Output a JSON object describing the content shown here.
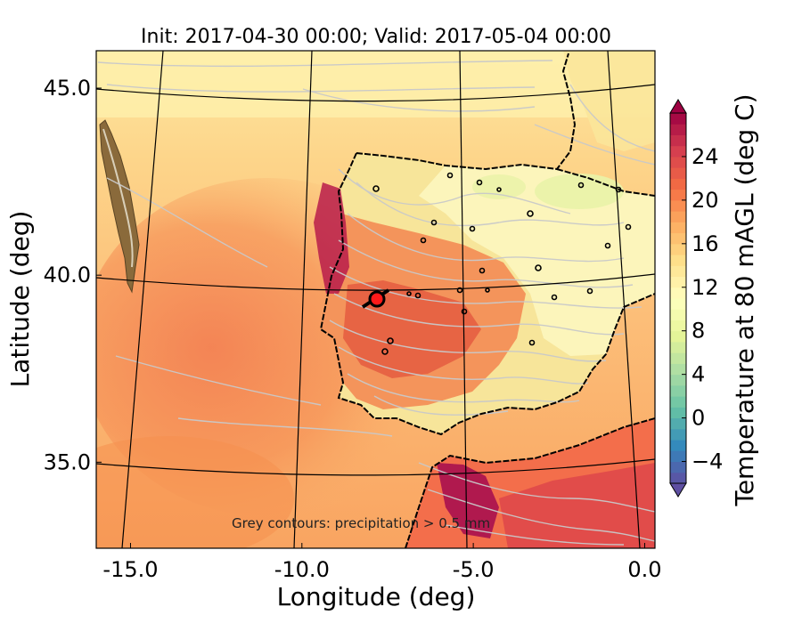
{
  "title": "Init: 2017-04-30 00:00; Valid: 2017-05-04 00:00",
  "annotation": "Grey contours: precipitation > 0.5 mm",
  "x_axis": {
    "label": "Longitude (deg)",
    "range": [
      -16.0,
      0.3
    ],
    "ticks": [
      {
        "value": -15.0,
        "label": "-15.0"
      },
      {
        "value": -10.0,
        "label": "-10.0"
      },
      {
        "value": -5.0,
        "label": "-5.0"
      },
      {
        "value": 0.0,
        "label": "0.0"
      }
    ]
  },
  "y_axis": {
    "label": "Latitude (deg)",
    "range": [
      32.7,
      46.0
    ],
    "ticks": [
      {
        "value": 35.0,
        "label": "35.0"
      },
      {
        "value": 40.0,
        "label": "40.0"
      },
      {
        "value": 45.0,
        "label": "45.0"
      }
    ]
  },
  "colorbar": {
    "label": "Temperature at 80 mAGL (deg C)",
    "range": [
      -6,
      28
    ],
    "ticks": [
      {
        "value": -4,
        "label": "−4"
      },
      {
        "value": 0,
        "label": "0"
      },
      {
        "value": 4,
        "label": "4"
      },
      {
        "value": 8,
        "label": "8"
      },
      {
        "value": 12,
        "label": "12"
      },
      {
        "value": 16,
        "label": "16"
      },
      {
        "value": 20,
        "label": "20"
      },
      {
        "value": 24,
        "label": "24"
      }
    ],
    "extend": "both",
    "colormap": "Spectral_r"
  },
  "marker": {
    "lon": -7.6,
    "lat": 39.3,
    "fill": "#ff1a1a",
    "edge": "#000000"
  },
  "colors": {
    "ocean_base": "#fcb869",
    "land_base": "#f6f3b5",
    "warm_land": "#f47a4d",
    "hot_land": "#a8104f",
    "precip_contours": "#c9c9c9",
    "coastline": "#000000",
    "graticule": "#000000"
  }
}
